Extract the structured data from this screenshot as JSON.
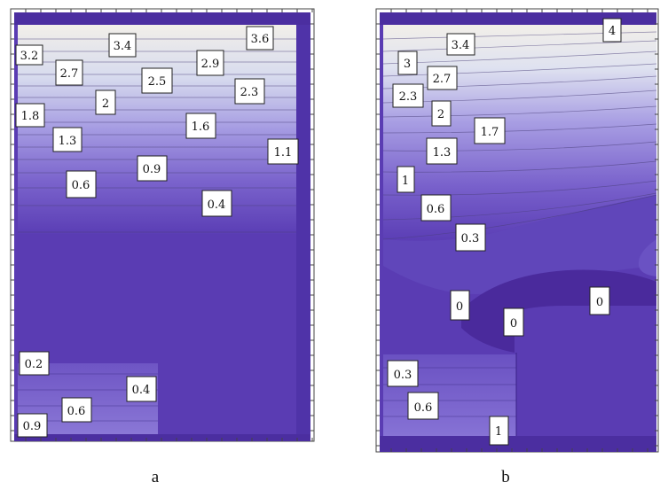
{
  "panels": [
    {
      "id": "a",
      "caption": "a",
      "contour_labels": [
        "3.2",
        "3.4",
        "3.6",
        "2.7",
        "2.9",
        "2.5",
        "2.3",
        "2",
        "1.8",
        "1.6",
        "1.3",
        "1.1",
        "0.9",
        "0.6",
        "0.4",
        "0.2",
        "0.4",
        "0.6",
        "0.9"
      ]
    },
    {
      "id": "b",
      "caption": "b",
      "contour_labels": [
        "4",
        "3.4",
        "3",
        "2.7",
        "2.3",
        "2",
        "1.7",
        "1.3",
        "1",
        "0.6",
        "0.3",
        "0",
        "0",
        "0",
        "0.3",
        "0.6",
        "1"
      ]
    }
  ],
  "colors": {
    "high": "#f0eee8",
    "mid": "#9a8fe0",
    "low": "#5a3fb6",
    "deep": "#4a2a9c",
    "frame": "#444444"
  }
}
